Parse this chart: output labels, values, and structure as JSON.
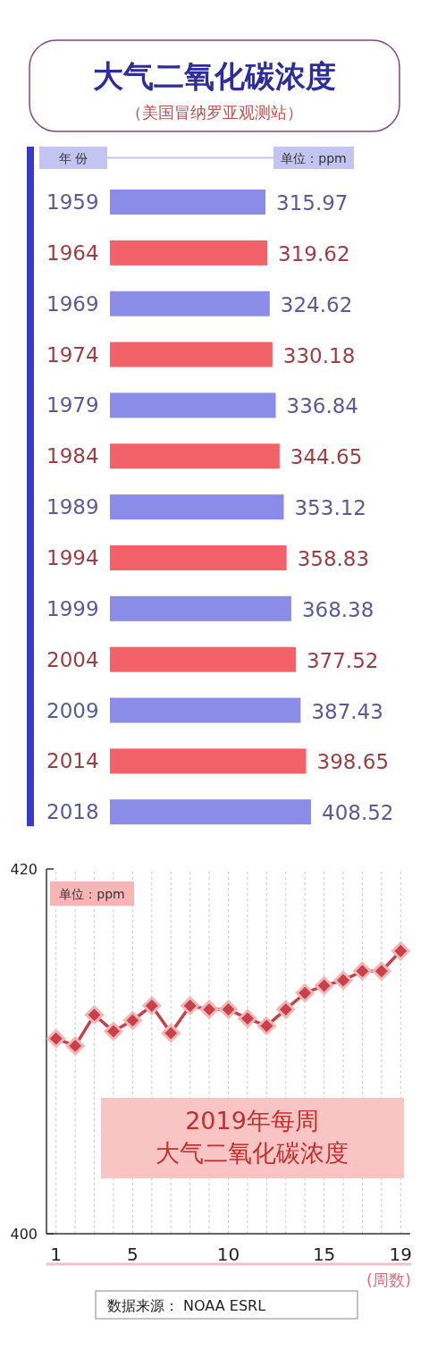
{
  "chart_data": [
    {
      "type": "bar",
      "orientation": "horizontal",
      "title": "大气二氧化碳浓度",
      "subtitle": "（美国冒纳罗亚观测站）",
      "ylabel": "年 份",
      "xlabel": "单位：ppm",
      "categories": [
        "1959",
        "1964",
        "1969",
        "1974",
        "1979",
        "1984",
        "1989",
        "1994",
        "1999",
        "2004",
        "2009",
        "2014",
        "2018"
      ],
      "values": [
        315.97,
        319.62,
        324.62,
        330.18,
        336.84,
        344.65,
        353.12,
        358.83,
        368.38,
        377.52,
        387.43,
        398.65,
        408.52
      ],
      "colors": [
        "#8b8be8",
        "#f26068",
        "#8b8be8",
        "#f26068",
        "#8b8be8",
        "#f26068",
        "#8b8be8",
        "#f26068",
        "#8b8be8",
        "#f26068",
        "#8b8be8",
        "#f26068",
        "#8b8be8"
      ],
      "data_labels": true
    },
    {
      "type": "line",
      "title": "2019年每周",
      "subtitle": "大气二氧化碳浓度",
      "ylabel": "单位：ppm",
      "xlabel": "(周数)",
      "annotations": [
        "数据来源： NOAA ESRL"
      ],
      "x": [
        1,
        2,
        3,
        4,
        5,
        6,
        7,
        8,
        9,
        10,
        11,
        12,
        13,
        14,
        15,
        16,
        17,
        18,
        19
      ],
      "values": [
        410.7,
        410.3,
        412.0,
        411.1,
        411.7,
        412.5,
        411.0,
        412.5,
        412.3,
        412.3,
        411.8,
        411.4,
        412.3,
        413.2,
        413.6,
        413.9,
        414.4,
        414.4,
        415.5
      ],
      "color": "#c8404a",
      "marker": "diamond",
      "grid": "x",
      "xlim": [
        0.5,
        19.5
      ],
      "ylim": [
        400,
        420
      ],
      "yticks": [
        400,
        420
      ],
      "xticks": [
        1,
        {
          "value": 2,
          "label": null
        },
        {
          "value": 3,
          "label": null
        },
        {
          "value": 4,
          "label": null
        },
        5,
        {
          "value": 6,
          "label": null
        },
        {
          "value": 7,
          "label": null
        },
        {
          "value": 8,
          "label": null
        },
        {
          "value": 9,
          "label": null
        },
        10,
        {
          "value": 11,
          "label": null
        },
        {
          "value": 12,
          "label": null
        },
        {
          "value": 13,
          "label": null
        },
        {
          "value": 14,
          "label": null
        },
        15,
        {
          "value": 16,
          "label": null
        },
        {
          "value": 17,
          "label": null
        },
        {
          "value": 18,
          "label": null
        },
        19
      ]
    }
  ]
}
